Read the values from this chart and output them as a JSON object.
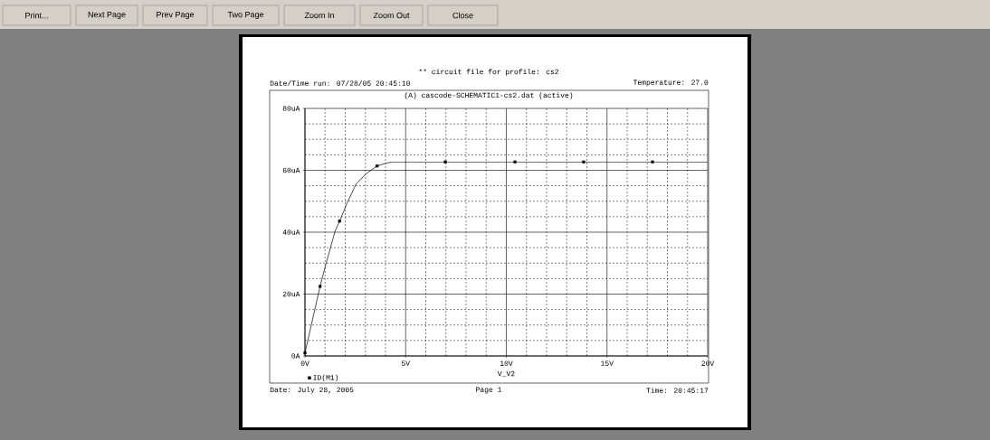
{
  "chart_data": {
    "type": "line",
    "title": "** circuit file for profile: cs2",
    "subtitle": "(A) cascode-SCHEMATIC1-cs2.dat (active)",
    "xlabel": "V_V2",
    "annotations": [
      "Date/Time run: 07/28/05 20:45:10",
      "Temperature: 27.0",
      "Date: July 28, 2005",
      "Page 1",
      "Time: 20:45:17",
      "Print...",
      "Next Page",
      "Prev Page",
      "Two Page",
      "Zoom In",
      "Zoom Out",
      "Close"
    ],
    "xlim": [
      0,
      20
    ],
    "ylim": [
      0,
      80
    ],
    "xticks": [
      {
        "value": 0,
        "label": "0V"
      },
      {
        "value": 1,
        "label": null
      },
      {
        "value": 2,
        "label": null
      },
      {
        "value": 3,
        "label": null
      },
      {
        "value": 4,
        "label": null
      },
      {
        "value": 5,
        "label": "5V"
      },
      {
        "value": 6,
        "label": null
      },
      {
        "value": 7,
        "label": null
      },
      {
        "value": 8,
        "label": null
      },
      {
        "value": 9,
        "label": null
      },
      {
        "value": 10,
        "label": "10V"
      },
      {
        "value": 11,
        "label": null
      },
      {
        "value": 12,
        "label": null
      },
      {
        "value": 13,
        "label": null
      },
      {
        "value": 14,
        "label": null
      },
      {
        "value": 15,
        "label": "15V"
      },
      {
        "value": 16,
        "label": null
      },
      {
        "value": 17,
        "label": null
      },
      {
        "value": 18,
        "label": null
      },
      {
        "value": 19,
        "label": null
      },
      {
        "value": 20,
        "label": "20V"
      }
    ],
    "yticks": [
      {
        "value": 0,
        "label": "0A"
      },
      {
        "value": 5,
        "label": null
      },
      {
        "value": 10,
        "label": null
      },
      {
        "value": 15,
        "label": null
      },
      {
        "value": 20,
        "label": "20uA"
      },
      {
        "value": 25,
        "label": null
      },
      {
        "value": 30,
        "label": null
      },
      {
        "value": 35,
        "label": null
      },
      {
        "value": 40,
        "label": "40uA"
      },
      {
        "value": 45,
        "label": null
      },
      {
        "value": 50,
        "label": null
      },
      {
        "value": 55,
        "label": null
      },
      {
        "value": 60,
        "label": "60uA"
      },
      {
        "value": 65,
        "label": null
      },
      {
        "value": 70,
        "label": null
      },
      {
        "value": 75,
        "label": null
      },
      {
        "value": 80,
        "label": "80uA"
      }
    ],
    "grid": true,
    "legend": "bottom left",
    "marker": "square",
    "series": [
      {
        "type": "line",
        "name": "ID(M1)",
        "color": "#000000",
        "marker": "none",
        "x": [
          0,
          0.75,
          1.04,
          1.49,
          1.72,
          2.09,
          2.54,
          3.06,
          3.58,
          4.03,
          4.33,
          20
        ],
        "values": [
          1,
          22.5,
          29.7,
          40.2,
          43.6,
          49.4,
          55.6,
          59,
          61.4,
          62.3,
          62.7,
          62.7
        ]
      },
      {
        "type": "scatter",
        "color": "#000000",
        "x": [
          0,
          0.75,
          1.72,
          3.58,
          6.97,
          10.43,
          13.84,
          17.26
        ],
        "values": [
          1,
          22.5,
          43.6,
          61.4,
          62.7,
          62.7,
          62.7,
          62.7
        ]
      }
    ]
  }
}
